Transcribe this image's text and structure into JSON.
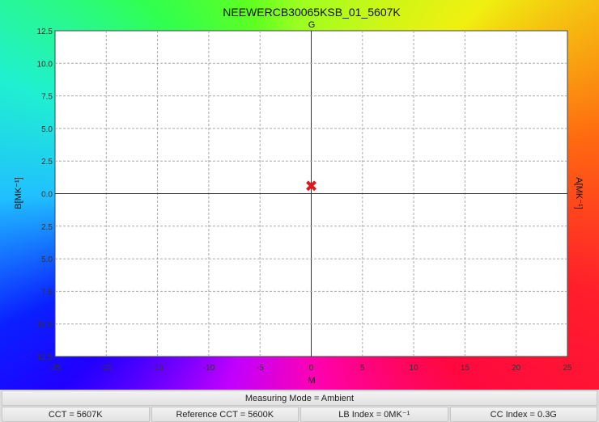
{
  "chart_data": {
    "type": "scatter",
    "title": "NEEWERCB30065KSB_01_5607K",
    "top_label": "G",
    "xlabel": "M",
    "ylabel": "B[MK⁻¹]",
    "right_label": "A[MK⁻¹]",
    "xlim": [
      -25,
      25
    ],
    "ylim": [
      -12.5,
      12.5
    ],
    "x_ticks": [
      "-25",
      "-20",
      "-15",
      "-10",
      "-5",
      "0",
      "5",
      "10",
      "15",
      "20",
      "25"
    ],
    "y_ticks": [
      "12.5",
      "10.0",
      "7.5",
      "5.0",
      "2.5",
      "0.0",
      "2.5",
      "5.0",
      "7.5",
      "10.0",
      "12.5"
    ],
    "grid": true,
    "points": [
      {
        "x": 0,
        "y": 0.6,
        "marker": "x",
        "color": "#e8141c"
      }
    ]
  },
  "footer": {
    "mode": "Measuring Mode = Ambient",
    "cct": "CCT = 5607K",
    "ref_cct": "Reference CCT = 5600K",
    "lb_index": "LB Index = 0MK⁻¹",
    "cc_index": "CC Index = 0.3G"
  }
}
